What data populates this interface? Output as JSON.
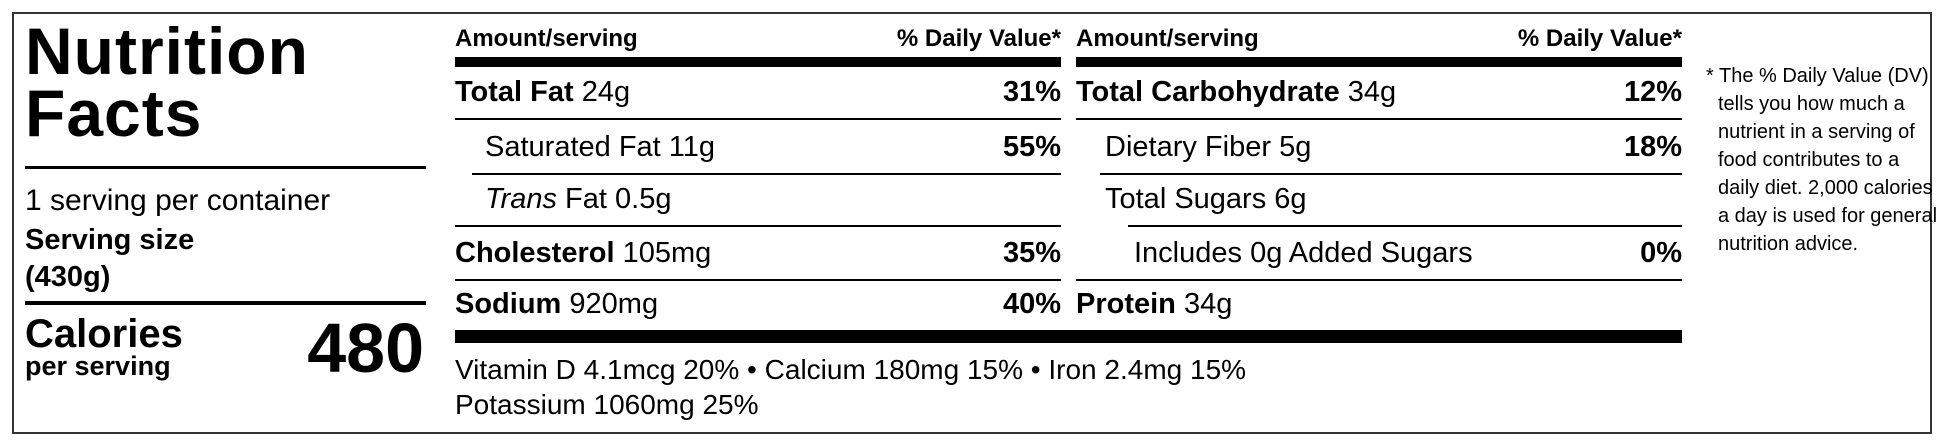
{
  "title": "Nutrition Facts",
  "servings": "1 serving per container",
  "serving_size_label": "Serving size",
  "serving_size_value": "(430g)",
  "calories_label": "Calories",
  "calories_sub": "per serving",
  "calories_value": "480",
  "header": {
    "amount": "Amount/serving",
    "daily_value": "% Daily Value*"
  },
  "left_rows": [
    {
      "name": "Total Fat",
      "amount": "24g",
      "dv": "31%"
    },
    {
      "name": "Saturated Fat",
      "amount": "11g",
      "dv": "55%"
    },
    {
      "name_italic": "Trans",
      "name": "Fat",
      "amount": "0.5g"
    },
    {
      "name": "Cholesterol",
      "amount": "105mg",
      "dv": "35%"
    },
    {
      "name": "Sodium",
      "amount": "920mg",
      "dv": "40%"
    }
  ],
  "right_rows": [
    {
      "name": "Total Carbohydrate",
      "amount": "34g",
      "dv": "12%"
    },
    {
      "name": "Dietary Fiber",
      "amount": "5g",
      "dv": "18%"
    },
    {
      "name": "Total Sugars",
      "amount": "6g"
    },
    {
      "name": "Includes 0g Added Sugars",
      "dv": "0%"
    },
    {
      "name": "Protein",
      "amount": "34g"
    }
  ],
  "micronutrients": [
    "Vitamin D 4.1mcg 20%",
    "Calcium 180mg 15%",
    "Iron 2.4mg 15%",
    "Potassium 1060mg 25%"
  ],
  "footnote": "* The % Daily Value (DV) tells you how much a nutrient in a serving of food contributes to a daily diet. 2,000 calories a day is used for general nutrition advice."
}
